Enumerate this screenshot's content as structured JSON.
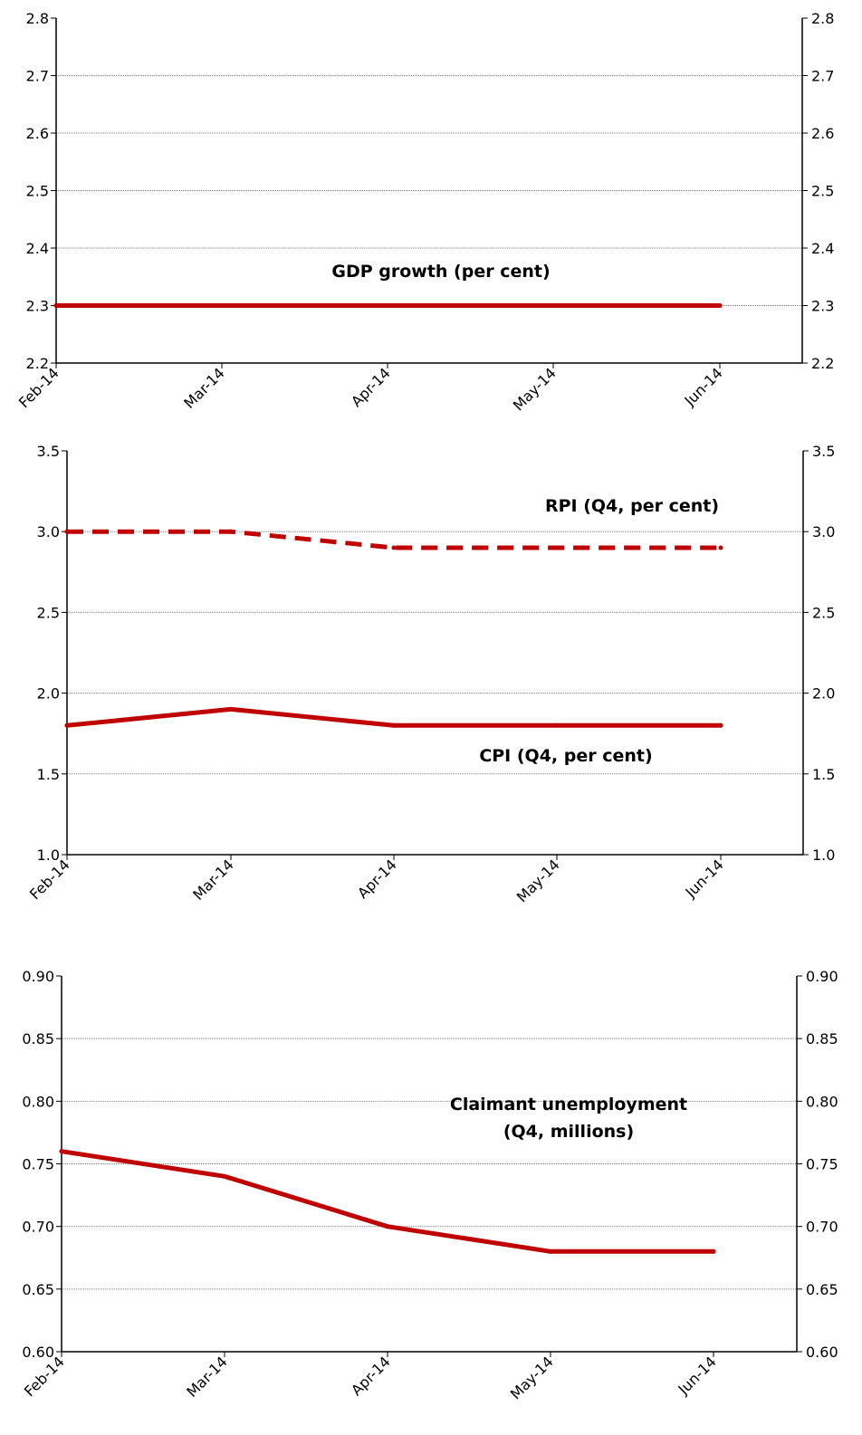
{
  "colors": {
    "series": "#c00000",
    "grid": "#808080",
    "axis": "#000000"
  },
  "chart_data": [
    {
      "type": "line",
      "x": [
        "Feb-14",
        "Mar-14",
        "Apr-14",
        "May-14",
        "Jun-14"
      ],
      "ylim": [
        2.2,
        2.8
      ],
      "yticks": [
        "2.2",
        "2.3",
        "2.4",
        "2.5",
        "2.6",
        "2.7",
        "2.8"
      ],
      "grid": true,
      "secondary_axis": true,
      "series": [
        {
          "values": [
            2.3,
            2.3,
            2.3,
            2.3,
            2.3
          ],
          "style": "solid"
        }
      ],
      "annotations": [
        {
          "text": "GDP growth (per cent)"
        }
      ]
    },
    {
      "type": "line",
      "x": [
        "Feb-14",
        "Mar-14",
        "Apr-14",
        "May-14",
        "Jun-14"
      ],
      "ylim": [
        1.0,
        3.5
      ],
      "yticks": [
        "1.0",
        "1.5",
        "2.0",
        "2.5",
        "3.0",
        "3.5"
      ],
      "grid": true,
      "secondary_axis": true,
      "series": [
        {
          "values": [
            3.0,
            3.0,
            2.9,
            2.9,
            2.9
          ],
          "style": "dashed"
        },
        {
          "values": [
            1.8,
            1.9,
            1.8,
            1.8,
            1.8
          ],
          "style": "solid"
        }
      ],
      "annotations": [
        {
          "text": "RPI (Q4, per cent)"
        },
        {
          "text": "CPI (Q4, per cent)"
        }
      ]
    },
    {
      "type": "line",
      "x": [
        "Feb-14",
        "Mar-14",
        "Apr-14",
        "May-14",
        "Jun-14"
      ],
      "ylim": [
        0.6,
        0.9
      ],
      "yticks": [
        "0.60",
        "0.65",
        "0.70",
        "0.75",
        "0.80",
        "0.85",
        "0.90"
      ],
      "grid": true,
      "secondary_axis": true,
      "series": [
        {
          "values": [
            0.76,
            0.74,
            0.7,
            0.68,
            0.68
          ],
          "style": "solid"
        }
      ],
      "annotations": [
        {
          "text": "Claimant unemployment"
        },
        {
          "text": "(Q4, millions)"
        }
      ]
    }
  ]
}
